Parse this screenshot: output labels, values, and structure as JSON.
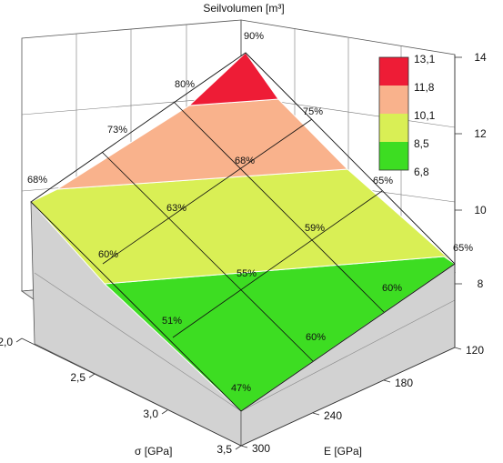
{
  "chart_data": {
    "type": "3d-surface",
    "title": "Seilvolumen [m³]",
    "x_axis": {
      "label": "E [GPa]",
      "ticks": [
        120,
        180,
        240,
        300
      ]
    },
    "y_axis": {
      "label": "σ [GPa]",
      "ticks": [
        "2,0",
        "2,5",
        "3,0",
        "3,5"
      ]
    },
    "z_axis": {
      "ticks": [
        8,
        10,
        12,
        14
      ]
    },
    "legend": {
      "position": "top-right",
      "items": [
        {
          "label": "13,1",
          "color": "#ee1c36"
        },
        {
          "label": "11,8",
          "color": "#f9b28c"
        },
        {
          "label": "10,1",
          "color": "#d9ef55"
        },
        {
          "label": "8,5",
          "color": "#3ddd22"
        },
        {
          "label": "6,8",
          "color": ""
        }
      ]
    },
    "point_labels": [
      {
        "E": 120,
        "sigma": "2,0",
        "label": "90%"
      },
      {
        "E": 180,
        "sigma": "2,0",
        "label": "75%"
      },
      {
        "E": 240,
        "sigma": "2,0",
        "label": "65%"
      },
      {
        "E": 300,
        "sigma": "2,0",
        "label": "65%"
      },
      {
        "E": 120,
        "sigma": "2,5",
        "label": "80%"
      },
      {
        "E": 180,
        "sigma": "2,5",
        "label": "68%"
      },
      {
        "E": 240,
        "sigma": "2,5",
        "label": "59%"
      },
      {
        "E": 300,
        "sigma": "2,5",
        "label": "60%"
      },
      {
        "E": 120,
        "sigma": "3,0",
        "label": "73%"
      },
      {
        "E": 180,
        "sigma": "3,0",
        "label": "63%"
      },
      {
        "E": 240,
        "sigma": "3,0",
        "label": "55%"
      },
      {
        "E": 300,
        "sigma": "3,0",
        "label": "60%"
      },
      {
        "E": 120,
        "sigma": "3,5",
        "label": "68%"
      },
      {
        "E": 180,
        "sigma": "3,5",
        "label": "60%"
      },
      {
        "E": 240,
        "sigma": "3,5",
        "label": "51%"
      },
      {
        "E": 300,
        "sigma": "3,5",
        "label": "47%"
      }
    ]
  }
}
